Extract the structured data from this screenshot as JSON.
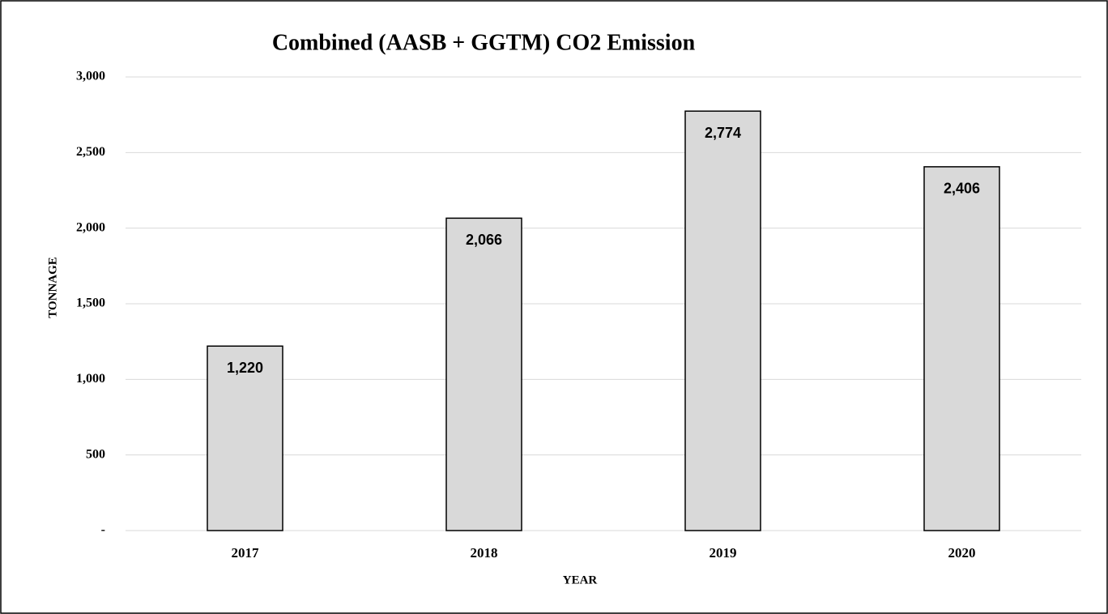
{
  "chart_data": {
    "type": "bar",
    "title": "Combined (AASB + GGTM) CO2 Emission",
    "x_label": "YEAR",
    "y_label": "TONNAGE",
    "categories": [
      "2017",
      "2018",
      "2019",
      "2020"
    ],
    "values": [
      1220,
      2066,
      2774,
      2406
    ],
    "value_labels": [
      "1,220",
      "2,066",
      "2,774",
      "2,406"
    ],
    "color": "#d9d9d9",
    "ylim": [
      0,
      3000
    ],
    "yticks": [
      {
        "value": 0,
        "label": "-"
      },
      500,
      {
        "value": 1000,
        "label": "1,000"
      },
      {
        "value": 1500,
        "label": "1,500"
      },
      {
        "value": 2000,
        "label": "2,000"
      },
      {
        "value": 2500,
        "label": "2,500"
      },
      {
        "value": 3000,
        "label": "3,000"
      }
    ],
    "grid": true
  }
}
